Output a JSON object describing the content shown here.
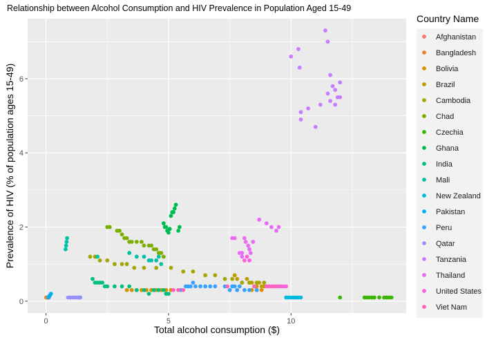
{
  "chart_data": {
    "type": "scatter",
    "title": "Relationship between Alcohol Consumption and HIV Prevalence in Population Aged 15-49",
    "xlabel": "Total alcohol consumption ($)",
    "ylabel": "Prevalence of HIV (% of population ages 15-49)",
    "xlim": [
      -0.75,
      14.7
    ],
    "ylim": [
      -0.32,
      7.62
    ],
    "x_ticks": [
      0,
      5,
      10
    ],
    "y_ticks": [
      0,
      2,
      4,
      6
    ],
    "grid": true,
    "legend_title": "Country Name",
    "legend_position": "right",
    "series": [
      {
        "name": "Afghanistan",
        "color": "#F8766D",
        "points": [
          [
            0.02,
            0.1
          ],
          [
            0.03,
            0.1
          ],
          [
            0.04,
            0.1
          ],
          [
            0.05,
            0.1
          ],
          [
            0.06,
            0.1
          ],
          [
            0.08,
            0.1
          ],
          [
            0.1,
            0.1
          ],
          [
            0.12,
            0.1
          ]
        ]
      },
      {
        "name": "Bangladesh",
        "color": "#EA8331",
        "points": [
          [
            0.01,
            0.1
          ],
          [
            0.02,
            0.1
          ],
          [
            0.03,
            0.1
          ],
          [
            0.04,
            0.1
          ],
          [
            0.05,
            0.1
          ],
          [
            0.06,
            0.1
          ]
        ]
      },
      {
        "name": "Bolivia",
        "color": "#D89000",
        "points": [
          [
            3.3,
            0.3
          ],
          [
            3.5,
            0.3
          ],
          [
            3.7,
            0.3
          ],
          [
            3.9,
            0.3
          ],
          [
            4.1,
            0.3
          ],
          [
            4.3,
            0.3
          ],
          [
            4.5,
            0.3
          ],
          [
            4.7,
            0.3
          ],
          [
            4.9,
            0.3
          ],
          [
            5.1,
            0.3
          ],
          [
            8.4,
            0.3
          ],
          [
            8.6,
            0.3
          ],
          [
            8.8,
            0.3
          ]
        ]
      },
      {
        "name": "Brazil",
        "color": "#C09B00",
        "points": [
          [
            7.7,
            0.7
          ],
          [
            7.8,
            0.6
          ],
          [
            8.0,
            0.5
          ],
          [
            8.2,
            0.6
          ],
          [
            8.3,
            0.5
          ],
          [
            8.4,
            0.5
          ],
          [
            8.5,
            0.4
          ],
          [
            8.6,
            0.4
          ],
          [
            8.7,
            0.5
          ],
          [
            8.8,
            0.4
          ],
          [
            8.9,
            0.4
          ],
          [
            9.0,
            0.4
          ],
          [
            9.1,
            0.4
          ]
        ]
      },
      {
        "name": "Cambodia",
        "color": "#A3A500",
        "points": [
          [
            1.8,
            1.2
          ],
          [
            2.0,
            1.2
          ],
          [
            2.2,
            1.1
          ],
          [
            2.5,
            1.1
          ],
          [
            2.8,
            1.0
          ],
          [
            3.1,
            1.0
          ],
          [
            3.3,
            1.0
          ],
          [
            3.6,
            0.9
          ],
          [
            4.0,
            0.9
          ],
          [
            4.5,
            0.9
          ],
          [
            5.1,
            0.9
          ],
          [
            5.6,
            0.8
          ],
          [
            6.0,
            0.8
          ],
          [
            6.5,
            0.7
          ],
          [
            6.9,
            0.7
          ],
          [
            7.3,
            0.6
          ],
          [
            7.6,
            0.6
          ],
          [
            8.0,
            0.5
          ],
          [
            8.3,
            0.5
          ],
          [
            8.6,
            0.5
          ],
          [
            8.9,
            0.5
          ]
        ]
      },
      {
        "name": "Chad",
        "color": "#7CAE00",
        "points": [
          [
            2.5,
            2.0
          ],
          [
            2.6,
            2.0
          ],
          [
            2.9,
            1.9
          ],
          [
            3.0,
            1.9
          ],
          [
            3.1,
            1.8
          ],
          [
            3.2,
            1.7
          ],
          [
            3.3,
            1.7
          ],
          [
            3.4,
            1.6
          ],
          [
            3.5,
            1.6
          ],
          [
            3.7,
            1.6
          ],
          [
            3.9,
            1.6
          ],
          [
            4.0,
            1.5
          ],
          [
            4.2,
            1.5
          ],
          [
            4.3,
            1.5
          ],
          [
            4.4,
            1.4
          ],
          [
            4.5,
            1.4
          ],
          [
            4.6,
            1.3
          ],
          [
            4.7,
            1.3
          ],
          [
            4.8,
            1.2
          ]
        ]
      },
      {
        "name": "Czechia",
        "color": "#39B600",
        "points": [
          [
            12.0,
            0.1
          ],
          [
            13.0,
            0.1
          ],
          [
            13.1,
            0.1
          ],
          [
            13.2,
            0.1
          ],
          [
            13.3,
            0.1
          ],
          [
            13.4,
            0.1
          ],
          [
            13.6,
            0.1
          ],
          [
            13.8,
            0.1
          ],
          [
            13.9,
            0.1
          ],
          [
            14.0,
            0.1
          ],
          [
            14.1,
            0.1
          ]
        ]
      },
      {
        "name": "Ghana",
        "color": "#00BB4E",
        "points": [
          [
            4.8,
            2.1
          ],
          [
            4.85,
            2.0
          ],
          [
            4.9,
            2.0
          ],
          [
            4.95,
            1.9
          ],
          [
            5.0,
            1.85
          ],
          [
            5.05,
            1.95
          ],
          [
            5.1,
            2.3
          ],
          [
            5.15,
            2.4
          ],
          [
            5.2,
            2.4
          ],
          [
            5.25,
            2.5
          ],
          [
            5.3,
            2.6
          ],
          [
            5.4,
            1.9
          ],
          [
            5.45,
            2.0
          ]
        ]
      },
      {
        "name": "India",
        "color": "#00BF7D",
        "points": [
          [
            1.9,
            0.6
          ],
          [
            2.0,
            0.5
          ],
          [
            2.1,
            0.5
          ],
          [
            2.2,
            0.5
          ],
          [
            2.3,
            0.5
          ],
          [
            2.4,
            0.4
          ],
          [
            2.5,
            0.4
          ],
          [
            2.8,
            0.4
          ],
          [
            3.1,
            0.4
          ],
          [
            3.4,
            0.4
          ],
          [
            3.7,
            0.3
          ],
          [
            4.0,
            0.3
          ],
          [
            4.2,
            0.2
          ],
          [
            4.4,
            0.3
          ],
          [
            4.6,
            0.3
          ],
          [
            4.8,
            0.3
          ],
          [
            4.9,
            0.2
          ],
          [
            5.0,
            0.2
          ]
        ]
      },
      {
        "name": "Mali",
        "color": "#00C1A3",
        "points": [
          [
            0.8,
            1.4
          ],
          [
            0.82,
            1.5
          ],
          [
            0.84,
            1.6
          ],
          [
            0.86,
            1.7
          ],
          [
            2.1,
            1.2
          ],
          [
            3.4,
            1.3
          ],
          [
            3.7,
            1.2
          ],
          [
            4.0,
            1.2
          ],
          [
            4.2,
            1.1
          ],
          [
            4.3,
            1.1
          ],
          [
            4.5,
            1.1
          ],
          [
            4.6,
            1.2
          ],
          [
            4.7,
            1.0
          ]
        ]
      },
      {
        "name": "New Zealand",
        "color": "#00BAE0",
        "points": [
          [
            9.8,
            0.1
          ],
          [
            9.9,
            0.1
          ],
          [
            10.0,
            0.1
          ],
          [
            10.1,
            0.1
          ],
          [
            10.2,
            0.1
          ],
          [
            10.3,
            0.1
          ],
          [
            10.4,
            0.1
          ]
        ]
      },
      {
        "name": "Pakistan",
        "color": "#00B0F6",
        "points": [
          [
            0.1,
            0.1
          ],
          [
            0.15,
            0.15
          ],
          [
            0.2,
            0.2
          ]
        ]
      },
      {
        "name": "Peru",
        "color": "#35A2FF",
        "points": [
          [
            5.5,
            0.3
          ],
          [
            5.7,
            0.4
          ],
          [
            5.8,
            0.4
          ],
          [
            5.9,
            0.4
          ],
          [
            6.0,
            0.5
          ],
          [
            6.1,
            0.4
          ],
          [
            6.3,
            0.4
          ],
          [
            6.5,
            0.4
          ],
          [
            6.7,
            0.4
          ],
          [
            6.9,
            0.4
          ],
          [
            7.3,
            0.4
          ],
          [
            7.5,
            0.3
          ],
          [
            7.6,
            0.4
          ],
          [
            7.7,
            0.4
          ],
          [
            7.8,
            0.3
          ],
          [
            7.9,
            0.4
          ],
          [
            8.1,
            0.3
          ],
          [
            8.3,
            0.3
          ],
          [
            8.6,
            0.3
          ]
        ]
      },
      {
        "name": "Qatar",
        "color": "#9590FF",
        "points": [
          [
            0.9,
            0.1
          ],
          [
            1.0,
            0.1
          ],
          [
            1.1,
            0.1
          ],
          [
            1.2,
            0.1
          ],
          [
            1.3,
            0.1
          ],
          [
            1.35,
            0.1
          ],
          [
            1.4,
            0.1
          ]
        ]
      },
      {
        "name": "Tanzania",
        "color": "#C77CFF",
        "points": [
          [
            10.0,
            6.6
          ],
          [
            10.3,
            6.8
          ],
          [
            10.35,
            6.3
          ],
          [
            10.4,
            5.1
          ],
          [
            10.4,
            4.9
          ],
          [
            10.7,
            5.2
          ],
          [
            11.0,
            4.7
          ],
          [
            11.2,
            5.3
          ],
          [
            11.4,
            7.3
          ],
          [
            11.5,
            7.0
          ],
          [
            11.5,
            5.6
          ],
          [
            11.6,
            6.1
          ],
          [
            11.6,
            5.4
          ],
          [
            11.7,
            5.8
          ],
          [
            11.8,
            5.7
          ],
          [
            11.8,
            5.3
          ],
          [
            11.9,
            5.5
          ],
          [
            12.0,
            5.9
          ],
          [
            12.0,
            5.5
          ]
        ]
      },
      {
        "name": "Thailand",
        "color": "#E76BF3",
        "points": [
          [
            7.6,
            1.7
          ],
          [
            7.7,
            1.7
          ],
          [
            7.9,
            1.3
          ],
          [
            8.0,
            1.3
          ],
          [
            8.0,
            1.2
          ],
          [
            8.1,
            1.7
          ],
          [
            8.15,
            1.6
          ],
          [
            8.25,
            1.5
          ],
          [
            8.3,
            1.4
          ],
          [
            8.35,
            1.3
          ],
          [
            8.45,
            1.6
          ],
          [
            8.7,
            2.2
          ],
          [
            9.0,
            2.1
          ],
          [
            9.2,
            2.0
          ],
          [
            9.4,
            1.9
          ],
          [
            9.5,
            2.0
          ]
        ]
      },
      {
        "name": "United States",
        "color": "#FA62DB",
        "points": [
          [
            8.1,
            1.1
          ],
          [
            8.2,
            1.2
          ],
          [
            8.3,
            1.1
          ],
          [
            9.1,
            0.4
          ],
          [
            9.3,
            0.4
          ],
          [
            9.4,
            0.4
          ],
          [
            9.5,
            0.4
          ],
          [
            9.6,
            0.4
          ],
          [
            9.7,
            0.4
          ],
          [
            9.8,
            0.4
          ]
        ]
      },
      {
        "name": "Viet Nam",
        "color": "#FF62BC",
        "points": [
          [
            5.2,
            0.3
          ],
          [
            5.4,
            0.3
          ],
          [
            5.6,
            0.3
          ],
          [
            7.4,
            0.4
          ],
          [
            8.5,
            0.4
          ],
          [
            9.0,
            0.4
          ],
          [
            9.2,
            0.4
          ],
          [
            9.4,
            0.4
          ]
        ]
      }
    ]
  }
}
